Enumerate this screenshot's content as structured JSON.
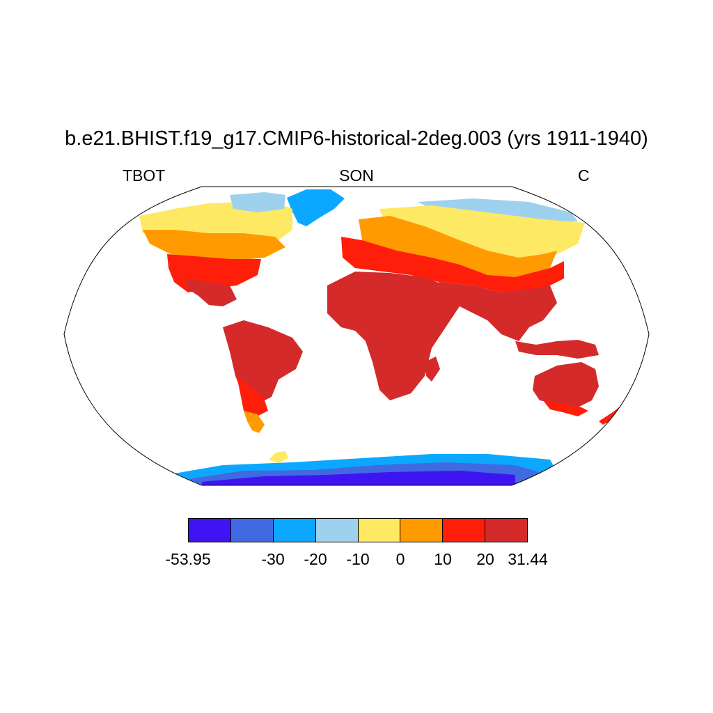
{
  "title": "b.e21.BHIST.f19_g17.CMIP6-historical-2deg.003 (yrs 1911-1940)",
  "left_label": "TBOT",
  "center_label": "SON",
  "right_label": "C",
  "colorbar": {
    "colors": [
      "#3f14f2",
      "#4169e1",
      "#0ca8ff",
      "#9dd1ee",
      "#fde964",
      "#ff9b00",
      "#ff1e0a",
      "#d42a2a"
    ],
    "labels": [
      "-53.95",
      "-30",
      "-20",
      "-10",
      "0",
      "10",
      "20",
      "31.44"
    ]
  },
  "colors": {
    "ocean": "#ffffff",
    "coast": "#000000"
  }
}
